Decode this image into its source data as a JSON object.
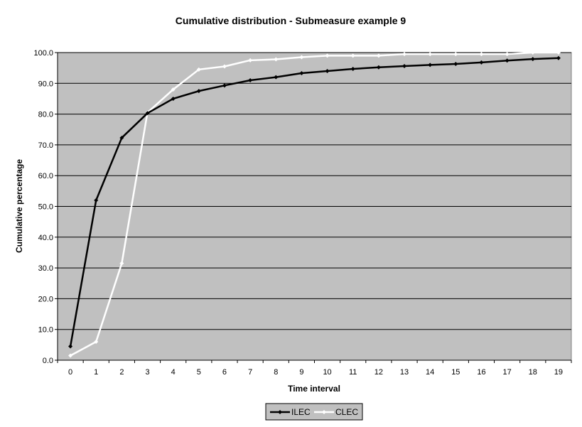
{
  "chart_data": {
    "type": "line",
    "title": "Cumulative distribution - Submeasure example 9",
    "xlabel": "Time interval",
    "ylabel": "Cumulative percentage",
    "ylim": [
      0,
      100
    ],
    "yticks": [
      "0.0",
      "10.0",
      "20.0",
      "30.0",
      "40.0",
      "50.0",
      "60.0",
      "70.0",
      "80.0",
      "90.0",
      "100.0"
    ],
    "x": [
      "0",
      "1",
      "2",
      "3",
      "4",
      "5",
      "6",
      "7",
      "8",
      "9",
      "10",
      "11",
      "12",
      "13",
      "14",
      "15",
      "16",
      "17",
      "18",
      "19"
    ],
    "grid": true,
    "legend_position": "bottom",
    "plot_background": "#c0c0c0",
    "series": [
      {
        "name": "ILEC",
        "color": "#000000",
        "values": [
          4.5,
          52.0,
          72.3,
          80.3,
          85.0,
          87.5,
          89.3,
          91.0,
          92.0,
          93.3,
          94.0,
          94.7,
          95.2,
          95.6,
          96.0,
          96.3,
          96.8,
          97.4,
          97.9,
          98.2
        ]
      },
      {
        "name": "CLEC",
        "color": "#ffffff",
        "values": [
          1.5,
          6.0,
          31.5,
          80.5,
          88.0,
          94.5,
          95.5,
          97.5,
          97.8,
          98.5,
          99.0,
          99.0,
          99.0,
          99.5,
          99.5,
          99.5,
          99.5,
          99.5,
          100.0,
          100.0
        ]
      }
    ]
  }
}
